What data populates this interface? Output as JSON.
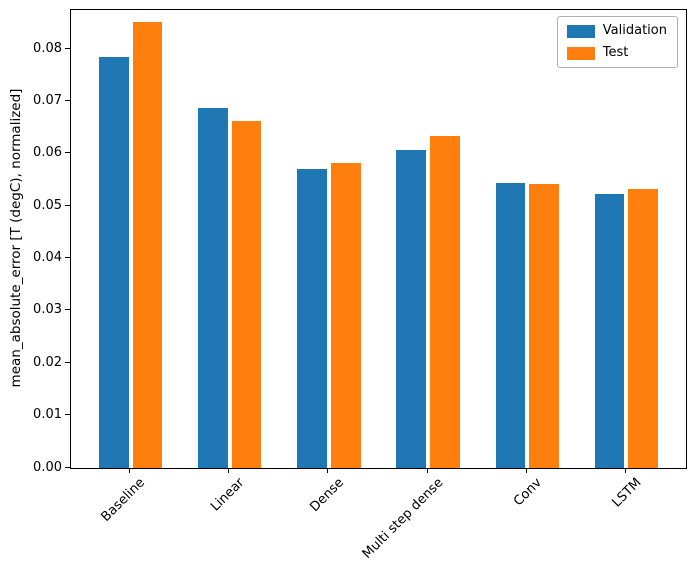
{
  "chart_data": {
    "type": "bar",
    "title": "",
    "categories": [
      "Baseline",
      "Linear",
      "Dense",
      "Multi step dense",
      "Conv",
      "LSTM"
    ],
    "series": [
      {
        "name": "Validation",
        "color": "#1f77b4",
        "values": [
          0.0785,
          0.0687,
          0.0572,
          0.0607,
          0.0545,
          0.0524
        ]
      },
      {
        "name": "Test",
        "color": "#ff7f0e",
        "values": [
          0.0852,
          0.0663,
          0.0583,
          0.0634,
          0.0543,
          0.0534
        ]
      }
    ],
    "xlabel": "",
    "ylabel": "mean_absolute_error [T (degC), normalized]",
    "xlim": [
      -0.6,
      5.6
    ],
    "ylim": [
      0,
      0.0875
    ],
    "yticks": [
      0,
      0.01,
      0.02,
      0.03,
      0.04,
      0.05,
      0.06,
      0.07,
      0.08
    ],
    "ytick_decimals": 2,
    "bar_width": 0.3,
    "bar_offset": 0.17,
    "x_tick_rotation": 45,
    "grid": false,
    "legend": {
      "position": "upper right"
    }
  }
}
